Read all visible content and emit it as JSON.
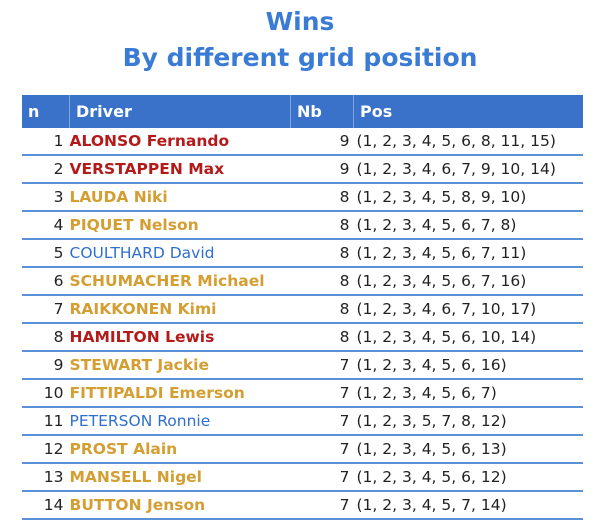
{
  "title": {
    "line1": "Wins",
    "line2": "By different grid position"
  },
  "colors": {
    "red": "#b31b1b",
    "gold": "#d39e32",
    "blue": "#2f6fd0",
    "header": "#3a72c9"
  },
  "table": {
    "headers": [
      "n",
      "Driver",
      "Nb",
      "Pos"
    ],
    "rows": [
      {
        "n": "1",
        "driver": "ALONSO Fernando",
        "color": "red",
        "nb": "9",
        "pos": "(1, 2, 3, 4, 5, 6, 8, 11, 15)"
      },
      {
        "n": "2",
        "driver": "VERSTAPPEN Max",
        "color": "red",
        "nb": "9",
        "pos": "(1, 2, 3, 4, 6, 7, 9, 10, 14)"
      },
      {
        "n": "3",
        "driver": "LAUDA Niki",
        "color": "gold",
        "nb": "8",
        "pos": "(1, 2, 3, 4, 5, 8, 9, 10)"
      },
      {
        "n": "4",
        "driver": "PIQUET Nelson",
        "color": "gold",
        "nb": "8",
        "pos": "(1, 2, 3, 4, 5, 6, 7, 8)"
      },
      {
        "n": "5",
        "driver": "COULTHARD David",
        "color": "blue",
        "nb": "8",
        "pos": "(1, 2, 3, 4, 5, 6, 7, 11)"
      },
      {
        "n": "6",
        "driver": "SCHUMACHER Michael",
        "color": "gold",
        "nb": "8",
        "pos": "(1, 2, 3, 4, 5, 6, 7, 16)"
      },
      {
        "n": "7",
        "driver": "RAIKKONEN Kimi",
        "color": "gold",
        "nb": "8",
        "pos": "(1, 2, 3, 4, 6, 7, 10, 17)"
      },
      {
        "n": "8",
        "driver": "HAMILTON Lewis",
        "color": "red",
        "nb": "8",
        "pos": "(1, 2, 3, 4, 5, 6, 10, 14)"
      },
      {
        "n": "9",
        "driver": "STEWART Jackie",
        "color": "gold",
        "nb": "7",
        "pos": "(1, 2, 3, 4, 5, 6, 16)"
      },
      {
        "n": "10",
        "driver": "FITTIPALDI Emerson",
        "color": "gold",
        "nb": "7",
        "pos": "(1, 2, 3, 4, 5, 6, 7)"
      },
      {
        "n": "11",
        "driver": "PETERSON Ronnie",
        "color": "blue",
        "nb": "7",
        "pos": "(1, 2, 3, 5, 7, 8, 12)"
      },
      {
        "n": "12",
        "driver": "PROST Alain",
        "color": "gold",
        "nb": "7",
        "pos": "(1, 2, 3, 4, 5, 6, 13)"
      },
      {
        "n": "13",
        "driver": "MANSELL Nigel",
        "color": "gold",
        "nb": "7",
        "pos": "(1, 2, 3, 4, 5, 6, 12)"
      },
      {
        "n": "14",
        "driver": "BUTTON Jenson",
        "color": "gold",
        "nb": "7",
        "pos": "(1, 2, 3, 4, 5, 7, 14)"
      }
    ]
  }
}
